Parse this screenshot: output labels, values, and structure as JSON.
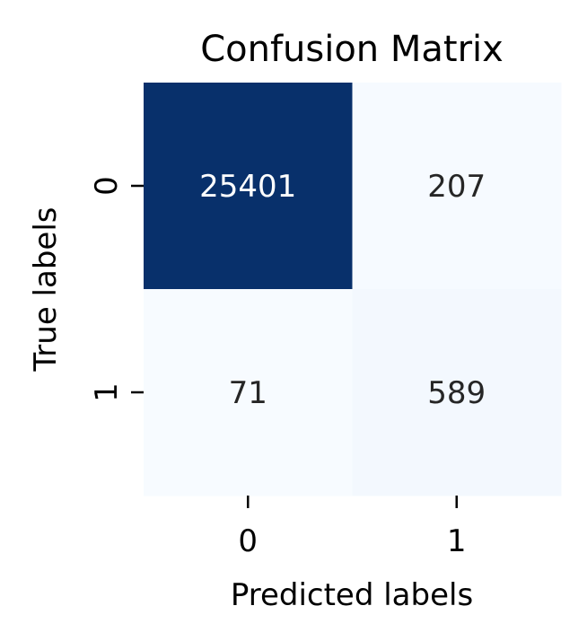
{
  "chart_data": {
    "type": "heatmap",
    "title": "Confusion Matrix",
    "xlabel": "Predicted labels",
    "ylabel": "True labels",
    "x_categories": [
      "0",
      "1"
    ],
    "y_categories": [
      "0",
      "1"
    ],
    "values": [
      [
        25401,
        207
      ],
      [
        71,
        589
      ]
    ],
    "colorscale": "Blues",
    "colors": {
      "high": "#08306b",
      "low": "#f7fbff",
      "dark_text": "#262626",
      "light_text": "#ffffff"
    },
    "grid": false,
    "colorbar": false
  }
}
